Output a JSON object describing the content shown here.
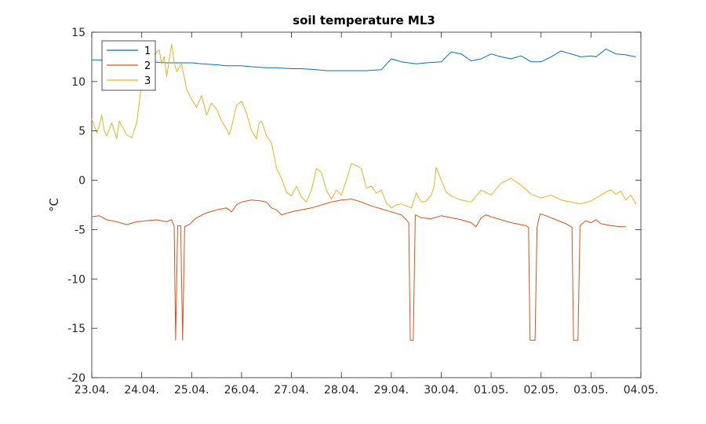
{
  "chart_data": {
    "type": "line",
    "title": "soil temperature ML3",
    "xlabel": "",
    "ylabel": "°C",
    "x_tick_labels": [
      "23.04.",
      "24.04.",
      "25.04.",
      "26.04.",
      "27.04.",
      "28.04.",
      "29.04.",
      "30.04.",
      "01.05.",
      "02.05.",
      "03.05.",
      "04.05."
    ],
    "xlim": [
      0,
      11
    ],
    "ylim": [
      -20,
      15
    ],
    "y_ticks": [
      15,
      10,
      5,
      0,
      -5,
      -10,
      -15,
      -20
    ],
    "grid": false,
    "legend_position": "top-left",
    "series": [
      {
        "name": "1",
        "color": "#0072BD",
        "points": [
          [
            0,
            12.2
          ],
          [
            0.15,
            12.2
          ],
          [
            0.3,
            12.1
          ],
          [
            0.5,
            12.0
          ],
          [
            0.8,
            12.1
          ],
          [
            1.0,
            12.0
          ],
          [
            1.2,
            12.0
          ],
          [
            1.5,
            11.9
          ],
          [
            1.8,
            11.9
          ],
          [
            2.0,
            11.9
          ],
          [
            2.2,
            11.8
          ],
          [
            2.5,
            11.7
          ],
          [
            2.7,
            11.6
          ],
          [
            3.0,
            11.6
          ],
          [
            3.2,
            11.5
          ],
          [
            3.5,
            11.4
          ],
          [
            3.7,
            11.4
          ],
          [
            4.0,
            11.3
          ],
          [
            4.2,
            11.3
          ],
          [
            4.5,
            11.2
          ],
          [
            4.7,
            11.1
          ],
          [
            5.0,
            11.1
          ],
          [
            5.2,
            11.1
          ],
          [
            5.5,
            11.1
          ],
          [
            5.8,
            11.2
          ],
          [
            6.0,
            12.3
          ],
          [
            6.2,
            12.0
          ],
          [
            6.5,
            11.8
          ],
          [
            6.7,
            11.9
          ],
          [
            7.0,
            12.0
          ],
          [
            7.2,
            13.0
          ],
          [
            7.4,
            12.8
          ],
          [
            7.6,
            12.1
          ],
          [
            7.8,
            12.3
          ],
          [
            8.0,
            12.8
          ],
          [
            8.2,
            12.5
          ],
          [
            8.4,
            12.3
          ],
          [
            8.6,
            12.6
          ],
          [
            8.8,
            12.0
          ],
          [
            9.0,
            12.0
          ],
          [
            9.2,
            12.5
          ],
          [
            9.4,
            13.1
          ],
          [
            9.6,
            12.8
          ],
          [
            9.8,
            12.5
          ],
          [
            10.0,
            12.6
          ],
          [
            10.1,
            12.5
          ],
          [
            10.2,
            12.9
          ],
          [
            10.3,
            13.3
          ],
          [
            10.5,
            12.8
          ],
          [
            10.7,
            12.7
          ],
          [
            10.9,
            12.5
          ]
        ]
      },
      {
        "name": "2",
        "color": "#D95319",
        "points": [
          [
            0,
            -3.7
          ],
          [
            0.15,
            -3.6
          ],
          [
            0.3,
            -4.0
          ],
          [
            0.5,
            -4.2
          ],
          [
            0.7,
            -4.5
          ],
          [
            0.9,
            -4.2
          ],
          [
            1.1,
            -4.1
          ],
          [
            1.3,
            -4.0
          ],
          [
            1.5,
            -4.2
          ],
          [
            1.6,
            -4.0
          ],
          [
            1.65,
            -4.6
          ],
          [
            1.68,
            -16.2
          ],
          [
            1.72,
            -4.6
          ],
          [
            1.78,
            -4.6
          ],
          [
            1.82,
            -16.2
          ],
          [
            1.86,
            -4.7
          ],
          [
            1.95,
            -4.5
          ],
          [
            2.1,
            -3.8
          ],
          [
            2.3,
            -3.3
          ],
          [
            2.5,
            -3.0
          ],
          [
            2.7,
            -2.8
          ],
          [
            2.8,
            -3.2
          ],
          [
            2.9,
            -2.5
          ],
          [
            3.0,
            -2.2
          ],
          [
            3.2,
            -2.0
          ],
          [
            3.4,
            -2.1
          ],
          [
            3.5,
            -2.2
          ],
          [
            3.6,
            -2.8
          ],
          [
            3.7,
            -3.0
          ],
          [
            3.8,
            -3.5
          ],
          [
            4.0,
            -3.2
          ],
          [
            4.2,
            -3.0
          ],
          [
            4.4,
            -2.8
          ],
          [
            4.6,
            -2.5
          ],
          [
            4.8,
            -2.2
          ],
          [
            5.0,
            -2.0
          ],
          [
            5.2,
            -1.9
          ],
          [
            5.4,
            -2.2
          ],
          [
            5.6,
            -2.6
          ],
          [
            5.8,
            -2.9
          ],
          [
            6.0,
            -3.2
          ],
          [
            6.2,
            -3.5
          ],
          [
            6.3,
            -4.0
          ],
          [
            6.35,
            -4.3
          ],
          [
            6.38,
            -16.2
          ],
          [
            6.44,
            -16.2
          ],
          [
            6.48,
            -3.5
          ],
          [
            6.6,
            -3.8
          ],
          [
            6.8,
            -3.9
          ],
          [
            7.0,
            -3.6
          ],
          [
            7.2,
            -3.8
          ],
          [
            7.4,
            -4.0
          ],
          [
            7.6,
            -4.3
          ],
          [
            7.7,
            -4.7
          ],
          [
            7.8,
            -3.8
          ],
          [
            7.9,
            -3.5
          ],
          [
            8.0,
            -3.7
          ],
          [
            8.2,
            -4.0
          ],
          [
            8.4,
            -4.3
          ],
          [
            8.6,
            -4.5
          ],
          [
            8.7,
            -4.6
          ],
          [
            8.75,
            -4.8
          ],
          [
            8.78,
            -16.2
          ],
          [
            8.88,
            -16.2
          ],
          [
            8.92,
            -4.8
          ],
          [
            8.98,
            -3.4
          ],
          [
            9.1,
            -3.6
          ],
          [
            9.3,
            -4.0
          ],
          [
            9.5,
            -4.4
          ],
          [
            9.6,
            -4.7
          ],
          [
            9.62,
            -4.8
          ],
          [
            9.65,
            -16.2
          ],
          [
            9.74,
            -16.2
          ],
          [
            9.78,
            -4.6
          ],
          [
            9.9,
            -4.1
          ],
          [
            10.0,
            -4.3
          ],
          [
            10.1,
            -4.0
          ],
          [
            10.2,
            -4.4
          ],
          [
            10.4,
            -4.6
          ],
          [
            10.6,
            -4.7
          ],
          [
            10.7,
            -4.7
          ]
        ]
      },
      {
        "name": "3",
        "color": "#EDB120",
        "points": [
          [
            0,
            6.2
          ],
          [
            0.05,
            5.5
          ],
          [
            0.1,
            4.8
          ],
          [
            0.15,
            5.5
          ],
          [
            0.2,
            6.6
          ],
          [
            0.25,
            5.0
          ],
          [
            0.3,
            4.5
          ],
          [
            0.4,
            5.8
          ],
          [
            0.5,
            4.2
          ],
          [
            0.55,
            6.0
          ],
          [
            0.6,
            5.5
          ],
          [
            0.7,
            4.6
          ],
          [
            0.8,
            4.3
          ],
          [
            0.9,
            5.8
          ],
          [
            0.95,
            7.8
          ],
          [
            1.0,
            10.0
          ],
          [
            1.05,
            11.0
          ],
          [
            1.1,
            12.5
          ],
          [
            1.2,
            12.0
          ],
          [
            1.3,
            13.0
          ],
          [
            1.35,
            13.2
          ],
          [
            1.4,
            11.8
          ],
          [
            1.45,
            12.5
          ],
          [
            1.5,
            10.5
          ],
          [
            1.6,
            13.8
          ],
          [
            1.65,
            12.0
          ],
          [
            1.7,
            11.0
          ],
          [
            1.8,
            11.8
          ],
          [
            1.85,
            10.5
          ],
          [
            1.9,
            9.2
          ],
          [
            2.0,
            8.2
          ],
          [
            2.1,
            7.4
          ],
          [
            2.2,
            8.6
          ],
          [
            2.3,
            6.6
          ],
          [
            2.4,
            7.8
          ],
          [
            2.5,
            7.2
          ],
          [
            2.6,
            6.0
          ],
          [
            2.7,
            5.2
          ],
          [
            2.75,
            4.6
          ],
          [
            2.8,
            5.4
          ],
          [
            2.9,
            7.6
          ],
          [
            3.0,
            8.0
          ],
          [
            3.1,
            6.8
          ],
          [
            3.2,
            5.0
          ],
          [
            3.3,
            4.2
          ],
          [
            3.35,
            5.8
          ],
          [
            3.4,
            6.0
          ],
          [
            3.5,
            4.5
          ],
          [
            3.6,
            3.8
          ],
          [
            3.7,
            1.2
          ],
          [
            3.8,
            0.2
          ],
          [
            3.9,
            -1.2
          ],
          [
            4.0,
            -1.6
          ],
          [
            4.1,
            -0.6
          ],
          [
            4.2,
            -1.7
          ],
          [
            4.3,
            -2.2
          ],
          [
            4.4,
            -1.0
          ],
          [
            4.5,
            1.2
          ],
          [
            4.6,
            0.8
          ],
          [
            4.7,
            -1.0
          ],
          [
            4.8,
            -1.9
          ],
          [
            4.9,
            -1.0
          ],
          [
            5.0,
            -1.5
          ],
          [
            5.1,
            0.0
          ],
          [
            5.2,
            1.7
          ],
          [
            5.3,
            1.5
          ],
          [
            5.4,
            1.2
          ],
          [
            5.5,
            -0.8
          ],
          [
            5.6,
            -0.6
          ],
          [
            5.7,
            -1.3
          ],
          [
            5.8,
            -1.0
          ],
          [
            5.9,
            -2.3
          ],
          [
            6.0,
            -2.8
          ],
          [
            6.1,
            -2.5
          ],
          [
            6.2,
            -2.4
          ],
          [
            6.3,
            -2.6
          ],
          [
            6.4,
            -2.8
          ],
          [
            6.5,
            -1.3
          ],
          [
            6.6,
            -2.2
          ],
          [
            6.7,
            -2.1
          ],
          [
            6.8,
            -1.5
          ],
          [
            6.85,
            -0.8
          ],
          [
            6.9,
            1.3
          ],
          [
            7.0,
            0.0
          ],
          [
            7.1,
            -1.2
          ],
          [
            7.2,
            -1.6
          ],
          [
            7.4,
            -2.0
          ],
          [
            7.6,
            -2.2
          ],
          [
            7.8,
            -1.0
          ],
          [
            8.0,
            -1.5
          ],
          [
            8.2,
            -0.3
          ],
          [
            8.4,
            0.2
          ],
          [
            8.6,
            -0.5
          ],
          [
            8.8,
            -1.4
          ],
          [
            9.0,
            -1.8
          ],
          [
            9.2,
            -1.5
          ],
          [
            9.4,
            -2.0
          ],
          [
            9.6,
            -2.2
          ],
          [
            9.8,
            -2.4
          ],
          [
            10.0,
            -2.1
          ],
          [
            10.1,
            -1.8
          ],
          [
            10.3,
            -1.2
          ],
          [
            10.4,
            -1.0
          ],
          [
            10.5,
            -1.4
          ],
          [
            10.6,
            -1.1
          ],
          [
            10.7,
            -2.0
          ],
          [
            10.8,
            -1.5
          ],
          [
            10.9,
            -2.4
          ]
        ]
      }
    ]
  }
}
